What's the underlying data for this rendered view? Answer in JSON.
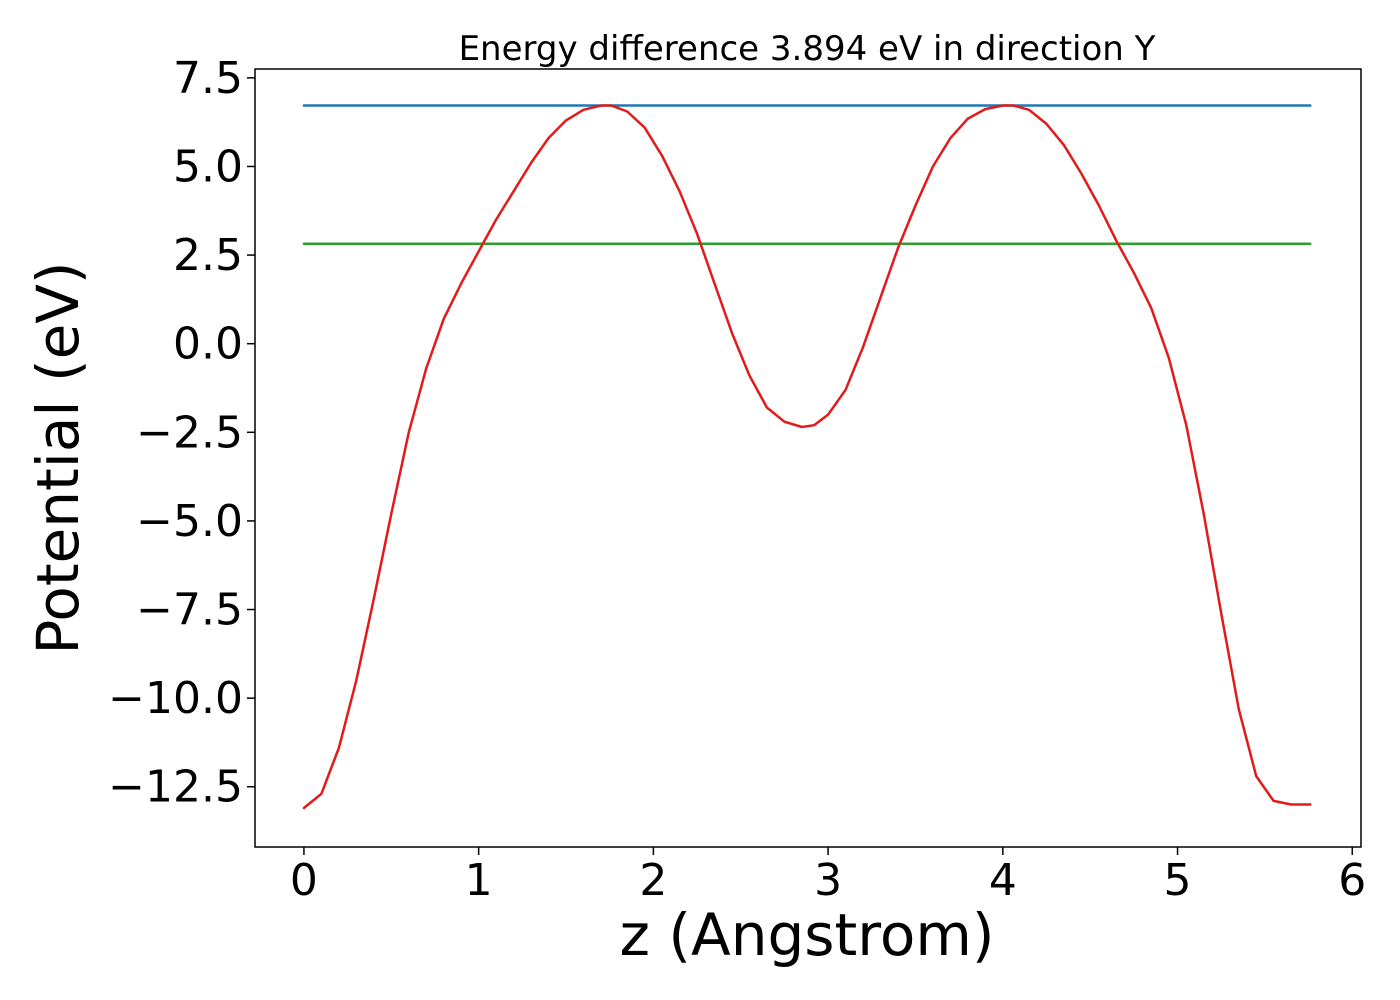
{
  "chart_data": {
    "type": "line",
    "title": "Energy difference 3.894 eV in direction Y",
    "xlabel": "z (Angstrom)",
    "ylabel": "Potential (eV)",
    "xlim": [
      -0.28,
      6.05
    ],
    "ylim": [
      -14.2,
      7.75
    ],
    "xticks": [
      0,
      1,
      2,
      3,
      4,
      5,
      6
    ],
    "xtick_labels": [
      "0",
      "1",
      "2",
      "3",
      "4",
      "5",
      "6"
    ],
    "yticks": [
      7.5,
      5.0,
      2.5,
      0.0,
      -2.5,
      -5.0,
      -7.5,
      -10.0,
      -12.5
    ],
    "ytick_labels": [
      "7.5",
      "5.0",
      "2.5",
      "0.0",
      "−2.5",
      "−5.0",
      "−7.5",
      "−10.0",
      "−12.5"
    ],
    "grid": false,
    "series": [
      {
        "color": "#1f77b4",
        "kind": "hline",
        "x": [
          0.0,
          5.76
        ],
        "y": [
          6.72,
          6.72
        ]
      },
      {
        "color": "#2ca02c",
        "kind": "hline",
        "x": [
          0.0,
          5.76
        ],
        "y": [
          2.82,
          2.82
        ]
      },
      {
        "color": "#e31a1c",
        "kind": "curve",
        "x": [
          0.0,
          0.1,
          0.2,
          0.3,
          0.4,
          0.5,
          0.6,
          0.7,
          0.8,
          0.9,
          1.0,
          1.1,
          1.2,
          1.3,
          1.4,
          1.5,
          1.6,
          1.7,
          1.76,
          1.85,
          1.95,
          2.05,
          2.15,
          2.25,
          2.35,
          2.45,
          2.55,
          2.65,
          2.75,
          2.85,
          2.92,
          3.0,
          3.1,
          3.2,
          3.3,
          3.4,
          3.5,
          3.6,
          3.7,
          3.8,
          3.9,
          4.0,
          4.06,
          4.15,
          4.25,
          4.35,
          4.45,
          4.55,
          4.65,
          4.75,
          4.85,
          4.95,
          5.05,
          5.15,
          5.25,
          5.35,
          5.45,
          5.55,
          5.65,
          5.76
        ],
        "y": [
          -13.1,
          -12.7,
          -11.4,
          -9.5,
          -7.2,
          -4.8,
          -2.5,
          -0.7,
          0.7,
          1.7,
          2.6,
          3.5,
          4.3,
          5.1,
          5.8,
          6.3,
          6.6,
          6.72,
          6.72,
          6.55,
          6.1,
          5.3,
          4.3,
          3.1,
          1.7,
          0.3,
          -0.9,
          -1.8,
          -2.2,
          -2.35,
          -2.3,
          -2.0,
          -1.3,
          -0.1,
          1.3,
          2.7,
          3.9,
          5.0,
          5.8,
          6.35,
          6.62,
          6.72,
          6.72,
          6.6,
          6.2,
          5.6,
          4.8,
          3.9,
          2.9,
          2.0,
          1.0,
          -0.4,
          -2.3,
          -4.8,
          -7.6,
          -10.3,
          -12.2,
          -12.9,
          -13.0,
          -13.0
        ]
      }
    ]
  }
}
